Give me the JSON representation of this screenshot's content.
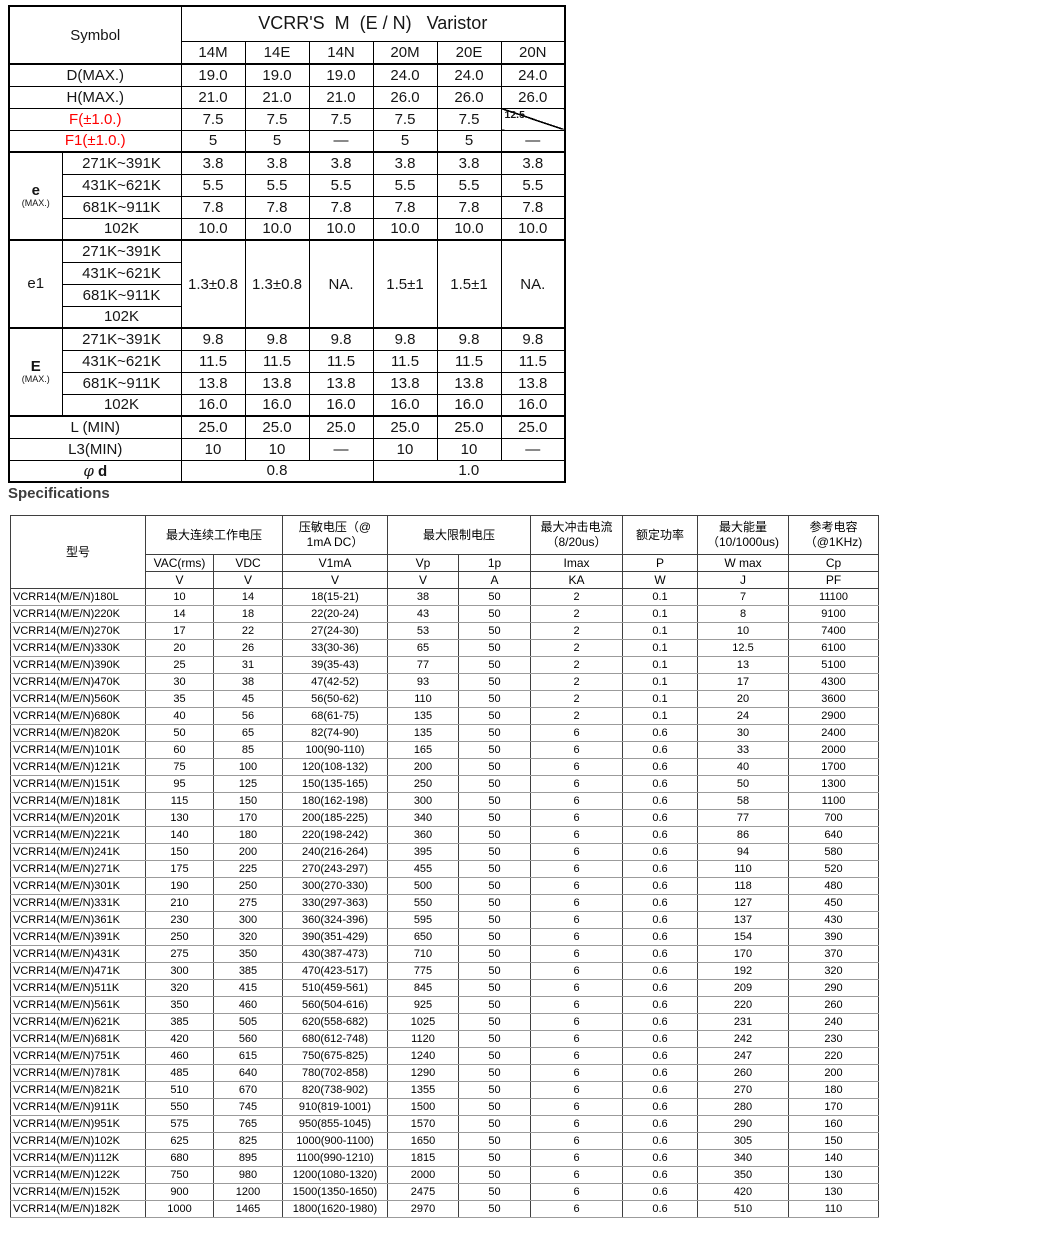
{
  "page": {
    "specifications_heading": "Specifications"
  },
  "colors": {
    "red_label": "#ff0000",
    "grid_dark": "#3f3f3f",
    "grid_gray": "#9b9b9b"
  },
  "dim_table": {
    "symbol_header": "Symbol",
    "title": "VCRR'S  M  (E / N)   Varistor",
    "models": [
      "14M",
      "14E",
      "14N",
      "20M",
      "20E",
      "20N"
    ],
    "ranges": [
      "271K~391K",
      "431K~621K",
      "681K~911K",
      "102K"
    ],
    "rows": {
      "d_max": {
        "label": "D(MAX.)",
        "values": [
          "19.0",
          "19.0",
          "19.0",
          "24.0",
          "24.0",
          "24.0"
        ]
      },
      "h_max": {
        "label": "H(MAX.)",
        "values": [
          "21.0",
          "21.0",
          "21.0",
          "26.0",
          "26.0",
          "26.0"
        ]
      },
      "f": {
        "label": "F(±1.0.)",
        "values": [
          "7.5",
          "7.5",
          "7.5",
          "7.5",
          "7.5"
        ],
        "special_value": "12.5"
      },
      "f1": {
        "label": "F1(±1.0.)",
        "values": [
          "5",
          "5",
          "—",
          "5",
          "5",
          "—"
        ]
      },
      "e_max": {
        "label": "e",
        "sublabel": "(MAX.)",
        "values": [
          [
            "3.8",
            "3.8",
            "3.8",
            "3.8",
            "3.8",
            "3.8"
          ],
          [
            "5.5",
            "5.5",
            "5.5",
            "5.5",
            "5.5",
            "5.5"
          ],
          [
            "7.8",
            "7.8",
            "7.8",
            "7.8",
            "7.8",
            "7.8"
          ],
          [
            "10.0",
            "10.0",
            "10.0",
            "10.0",
            "10.0",
            "10.0"
          ]
        ]
      },
      "e1": {
        "label": "e1",
        "values": [
          "1.3±0.8",
          "1.3±0.8",
          "NA.",
          "1.5±1",
          "1.5±1",
          "NA."
        ]
      },
      "E_max": {
        "label": "E",
        "sublabel": "(MAX.)",
        "values": [
          [
            "9.8",
            "9.8",
            "9.8",
            "9.8",
            "9.8",
            "9.8"
          ],
          [
            "11.5",
            "11.5",
            "11.5",
            "11.5",
            "11.5",
            "11.5"
          ],
          [
            "13.8",
            "13.8",
            "13.8",
            "13.8",
            "13.8",
            "13.8"
          ],
          [
            "16.0",
            "16.0",
            "16.0",
            "16.0",
            "16.0",
            "16.0"
          ]
        ]
      },
      "l_min": {
        "label": "L (MIN)",
        "values": [
          "25.0",
          "25.0",
          "25.0",
          "25.0",
          "25.0",
          "25.0"
        ]
      },
      "l3_min": {
        "label": "L3(MIN)",
        "values": [
          "10",
          "10",
          "—",
          "10",
          "10",
          "—"
        ]
      },
      "phi_d": {
        "symbol": "φ",
        "label": "d",
        "left_value": "0.8",
        "right_value": "1.0"
      }
    }
  },
  "spec_table": {
    "headers": {
      "model": "型号",
      "max_continuous_voltage": "最大连续工作电压",
      "varistor_voltage": "压敏电压（@\n1mA DC）",
      "max_limiting_voltage": "最大限制电压",
      "max_surge_current": "最大冲击电流\n（8/20us）",
      "rated_power": "额定功率",
      "max_energy": "最大能量\n（10/1000us)",
      "reference_capacitance": "参考电容\n（@1KHz)"
    },
    "sub_headers": [
      "VAC(rms)",
      "VDC",
      "V1mA",
      "Vp",
      "1p",
      "Imax",
      "P",
      "W max",
      "Cp"
    ],
    "units": [
      "V",
      "V",
      "V",
      "V",
      "A",
      "KA",
      "W",
      "J",
      "PF"
    ],
    "rows": [
      [
        "VCRR14(M/E/N)180L",
        "10",
        "14",
        "18(15-21)",
        "38",
        "50",
        "2",
        "0.1",
        "7",
        "11100"
      ],
      [
        "VCRR14(M/E/N)220K",
        "14",
        "18",
        "22(20-24)",
        "43",
        "50",
        "2",
        "0.1",
        "8",
        "9100"
      ],
      [
        "VCRR14(M/E/N)270K",
        "17",
        "22",
        "27(24-30)",
        "53",
        "50",
        "2",
        "0.1",
        "10",
        "7400"
      ],
      [
        "VCRR14(M/E/N)330K",
        "20",
        "26",
        "33(30-36)",
        "65",
        "50",
        "2",
        "0.1",
        "12.5",
        "6100"
      ],
      [
        "VCRR14(M/E/N)390K",
        "25",
        "31",
        "39(35-43)",
        "77",
        "50",
        "2",
        "0.1",
        "13",
        "5100"
      ],
      [
        "VCRR14(M/E/N)470K",
        "30",
        "38",
        "47(42-52)",
        "93",
        "50",
        "2",
        "0.1",
        "17",
        "4300"
      ],
      [
        "VCRR14(M/E/N)560K",
        "35",
        "45",
        "56(50-62)",
        "110",
        "50",
        "2",
        "0.1",
        "20",
        "3600"
      ],
      [
        "VCRR14(M/E/N)680K",
        "40",
        "56",
        "68(61-75)",
        "135",
        "50",
        "2",
        "0.1",
        "24",
        "2900"
      ],
      [
        "VCRR14(M/E/N)820K",
        "50",
        "65",
        "82(74-90)",
        "135",
        "50",
        "6",
        "0.6",
        "30",
        "2400"
      ],
      [
        "VCRR14(M/E/N)101K",
        "60",
        "85",
        "100(90-110)",
        "165",
        "50",
        "6",
        "0.6",
        "33",
        "2000"
      ],
      [
        "VCRR14(M/E/N)121K",
        "75",
        "100",
        "120(108-132)",
        "200",
        "50",
        "6",
        "0.6",
        "40",
        "1700"
      ],
      [
        "VCRR14(M/E/N)151K",
        "95",
        "125",
        "150(135-165)",
        "250",
        "50",
        "6",
        "0.6",
        "50",
        "1300"
      ],
      [
        "VCRR14(M/E/N)181K",
        "115",
        "150",
        "180(162-198)",
        "300",
        "50",
        "6",
        "0.6",
        "58",
        "1100"
      ],
      [
        "VCRR14(M/E/N)201K",
        "130",
        "170",
        "200(185-225)",
        "340",
        "50",
        "6",
        "0.6",
        "77",
        "700"
      ],
      [
        "VCRR14(M/E/N)221K",
        "140",
        "180",
        "220(198-242)",
        "360",
        "50",
        "6",
        "0.6",
        "86",
        "640"
      ],
      [
        "VCRR14(M/E/N)241K",
        "150",
        "200",
        "240(216-264)",
        "395",
        "50",
        "6",
        "0.6",
        "94",
        "580"
      ],
      [
        "VCRR14(M/E/N)271K",
        "175",
        "225",
        "270(243-297)",
        "455",
        "50",
        "6",
        "0.6",
        "110",
        "520"
      ],
      [
        "VCRR14(M/E/N)301K",
        "190",
        "250",
        "300(270-330)",
        "500",
        "50",
        "6",
        "0.6",
        "118",
        "480"
      ],
      [
        "VCRR14(M/E/N)331K",
        "210",
        "275",
        "330(297-363)",
        "550",
        "50",
        "6",
        "0.6",
        "127",
        "450"
      ],
      [
        "VCRR14(M/E/N)361K",
        "230",
        "300",
        "360(324-396)",
        "595",
        "50",
        "6",
        "0.6",
        "137",
        "430"
      ],
      [
        "VCRR14(M/E/N)391K",
        "250",
        "320",
        "390(351-429)",
        "650",
        "50",
        "6",
        "0.6",
        "154",
        "390"
      ],
      [
        "VCRR14(M/E/N)431K",
        "275",
        "350",
        "430(387-473)",
        "710",
        "50",
        "6",
        "0.6",
        "170",
        "370"
      ],
      [
        "VCRR14(M/E/N)471K",
        "300",
        "385",
        "470(423-517)",
        "775",
        "50",
        "6",
        "0.6",
        "192",
        "320"
      ],
      [
        "VCRR14(M/E/N)511K",
        "320",
        "415",
        "510(459-561)",
        "845",
        "50",
        "6",
        "0.6",
        "209",
        "290"
      ],
      [
        "VCRR14(M/E/N)561K",
        "350",
        "460",
        "560(504-616)",
        "925",
        "50",
        "6",
        "0.6",
        "220",
        "260"
      ],
      [
        "VCRR14(M/E/N)621K",
        "385",
        "505",
        "620(558-682)",
        "1025",
        "50",
        "6",
        "0.6",
        "231",
        "240"
      ],
      [
        "VCRR14(M/E/N)681K",
        "420",
        "560",
        "680(612-748)",
        "1120",
        "50",
        "6",
        "0.6",
        "242",
        "230"
      ],
      [
        "VCRR14(M/E/N)751K",
        "460",
        "615",
        "750(675-825)",
        "1240",
        "50",
        "6",
        "0.6",
        "247",
        "220"
      ],
      [
        "VCRR14(M/E/N)781K",
        "485",
        "640",
        "780(702-858)",
        "1290",
        "50",
        "6",
        "0.6",
        "260",
        "200"
      ],
      [
        "VCRR14(M/E/N)821K",
        "510",
        "670",
        "820(738-902)",
        "1355",
        "50",
        "6",
        "0.6",
        "270",
        "180"
      ],
      [
        "VCRR14(M/E/N)911K",
        "550",
        "745",
        "910(819-1001)",
        "1500",
        "50",
        "6",
        "0.6",
        "280",
        "170"
      ],
      [
        "VCRR14(M/E/N)951K",
        "575",
        "765",
        "950(855-1045)",
        "1570",
        "50",
        "6",
        "0.6",
        "290",
        "160"
      ],
      [
        "VCRR14(M/E/N)102K",
        "625",
        "825",
        "1000(900-1100)",
        "1650",
        "50",
        "6",
        "0.6",
        "305",
        "150"
      ],
      [
        "VCRR14(M/E/N)112K",
        "680",
        "895",
        "1100(990-1210)",
        "1815",
        "50",
        "6",
        "0.6",
        "340",
        "140"
      ],
      [
        "VCRR14(M/E/N)122K",
        "750",
        "980",
        "1200(1080-1320)",
        "2000",
        "50",
        "6",
        "0.6",
        "350",
        "130"
      ],
      [
        "VCRR14(M/E/N)152K",
        "900",
        "1200",
        "1500(1350-1650)",
        "2475",
        "50",
        "6",
        "0.6",
        "420",
        "130"
      ],
      [
        "VCRR14(M/E/N)182K",
        "1000",
        "1465",
        "1800(1620-1980)",
        "2970",
        "50",
        "6",
        "0.6",
        "510",
        "110"
      ]
    ]
  }
}
